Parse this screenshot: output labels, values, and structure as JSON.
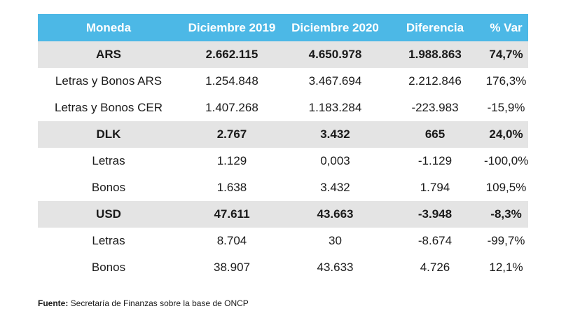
{
  "columns": [
    "Moneda",
    "Diciembre 2019",
    "Diciembre 2020",
    "Diferencia",
    "% Var"
  ],
  "rows": [
    {
      "type": "group",
      "cells": [
        "ARS",
        "2.662.115",
        "4.650.978",
        "1.988.863",
        "74,7%"
      ]
    },
    {
      "type": "sub",
      "cells": [
        "Letras y Bonos ARS",
        "1.254.848",
        "3.467.694",
        "2.212.846",
        "176,3%"
      ]
    },
    {
      "type": "sub",
      "cells": [
        "Letras y Bonos CER",
        "1.407.268",
        "1.183.284",
        "-223.983",
        "-15,9%"
      ]
    },
    {
      "type": "group",
      "cells": [
        "DLK",
        "2.767",
        "3.432",
        "665",
        "24,0%"
      ]
    },
    {
      "type": "sub",
      "cells": [
        "Letras",
        "1.129",
        "0,003",
        "-1.129",
        "-100,0%"
      ]
    },
    {
      "type": "sub",
      "cells": [
        "Bonos",
        "1.638",
        "3.432",
        "1.794",
        "109,5%"
      ]
    },
    {
      "type": "group",
      "cells": [
        "USD",
        "47.611",
        "43.663",
        "-3.948",
        "-8,3%"
      ]
    },
    {
      "type": "sub",
      "cells": [
        "Letras",
        "8.704",
        "30",
        "-8.674",
        "-99,7%"
      ]
    },
    {
      "type": "sub",
      "cells": [
        "Bonos",
        "38.907",
        "43.633",
        "4.726",
        "12,1%"
      ]
    }
  ],
  "source": {
    "label": "Fuente:",
    "text": " Secretaría de Finanzas sobre la base de ONCP"
  },
  "colors": {
    "header_bg": "#4cb8e6",
    "group_bg": "#e4e4e4"
  }
}
